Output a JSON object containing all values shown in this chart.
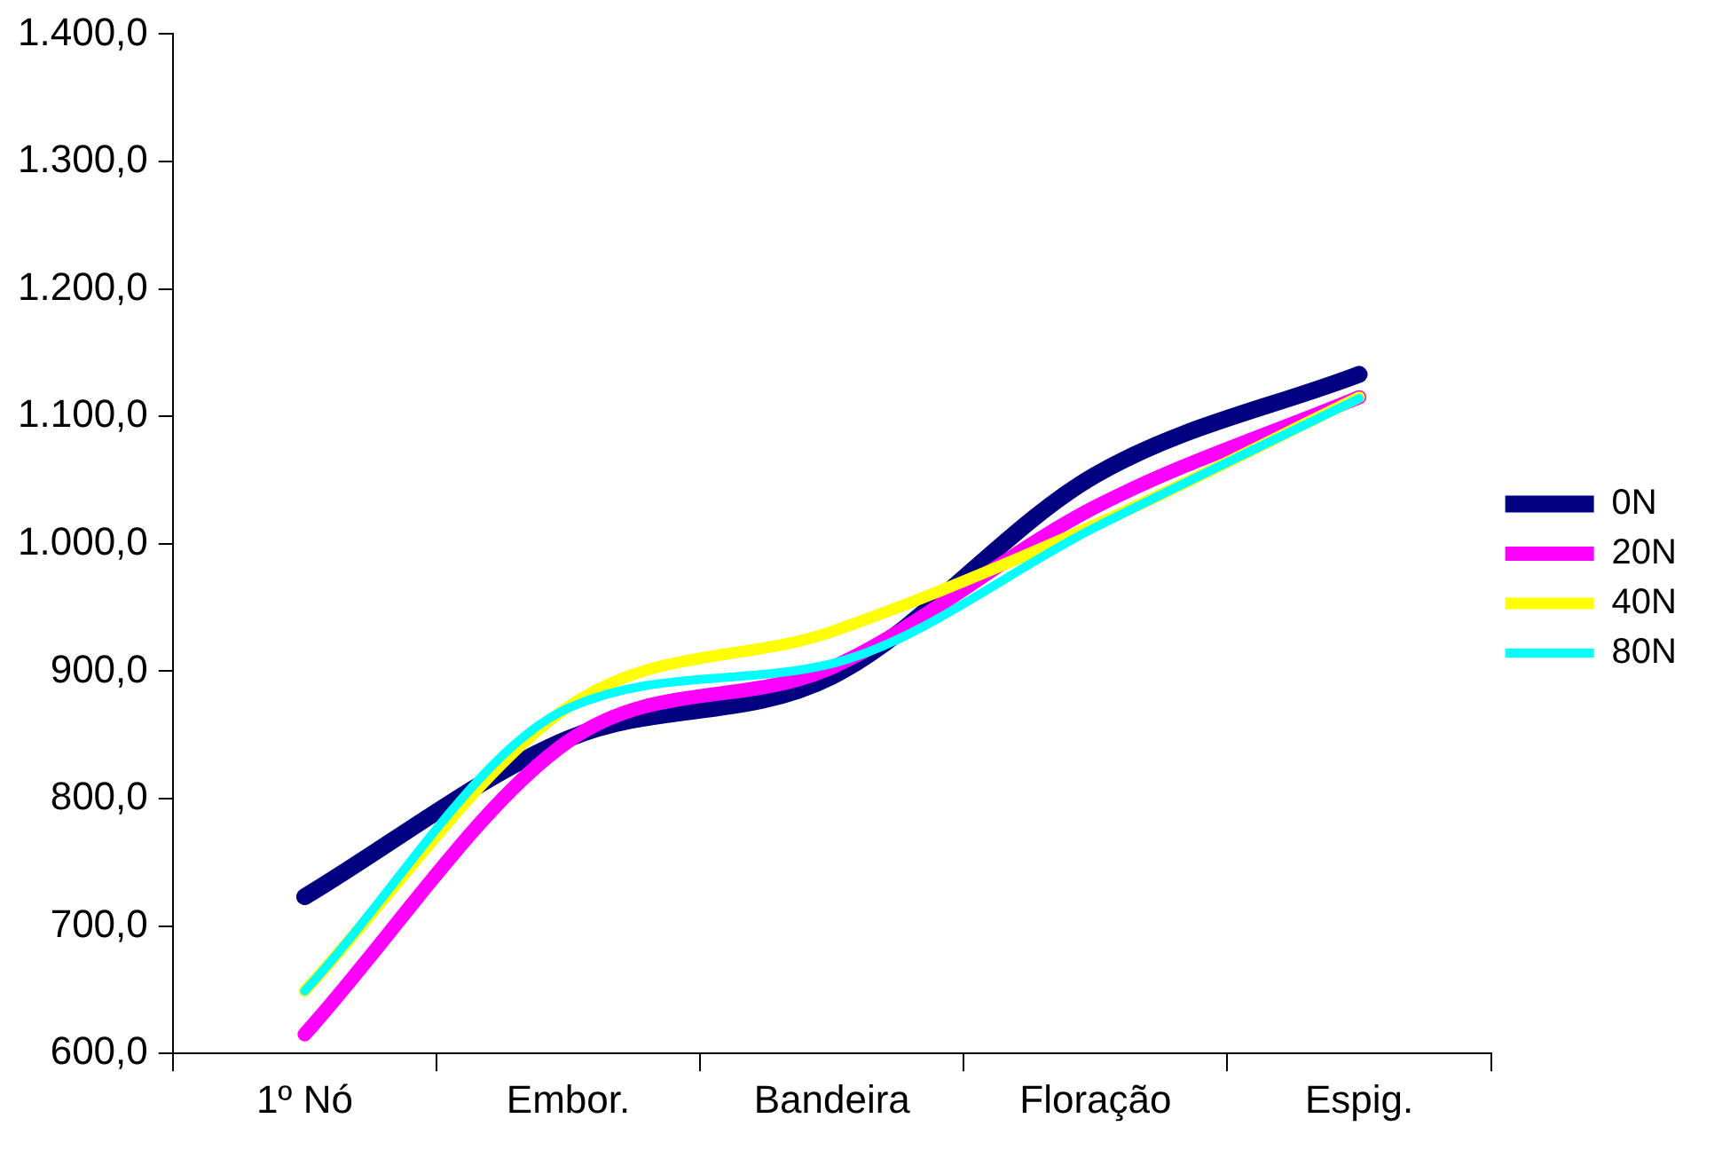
{
  "chart_data": {
    "type": "line",
    "categories": [
      "1º Nó",
      "Embor.",
      "Bandeira",
      "Floração",
      "Espig."
    ],
    "series": [
      {
        "name": "0N",
        "color": "#000080",
        "values": [
          723,
          847,
          896,
          1054,
          1133
        ]
      },
      {
        "name": "20N",
        "color": "#ff00ff",
        "values": [
          615,
          845,
          903,
          1029,
          1115
        ]
      },
      {
        "name": "40N",
        "color": "#ffff00",
        "values": [
          649,
          872,
          931,
          1015,
          1115
        ]
      },
      {
        "name": "80N",
        "color": "#00ffff",
        "values": [
          649,
          871,
          906,
          1013,
          1114
        ]
      }
    ],
    "ylim": [
      600,
      1400
    ],
    "yticks": [
      {
        "value": 600,
        "label": "600,0"
      },
      {
        "value": 700,
        "label": "700,0"
      },
      {
        "value": 800,
        "label": "800,0"
      },
      {
        "value": 900,
        "label": "900,0"
      },
      {
        "value": 1000,
        "label": "1.000,0"
      },
      {
        "value": 1100,
        "label": "1.100,0"
      },
      {
        "value": 1200,
        "label": "1.200,0"
      },
      {
        "value": 1300,
        "label": "1.300,0"
      },
      {
        "value": 1400,
        "label": "1.400,0"
      }
    ],
    "grid": false,
    "legend": "right",
    "marker": "none",
    "line_style": "solid"
  }
}
